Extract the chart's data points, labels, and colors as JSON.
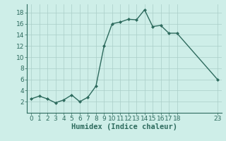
{
  "x": [
    0,
    1,
    2,
    3,
    4,
    5,
    6,
    7,
    8,
    9,
    10,
    11,
    12,
    13,
    14,
    15,
    16,
    17,
    18,
    23
  ],
  "y": [
    2.5,
    3.0,
    2.5,
    1.8,
    2.3,
    3.2,
    2.0,
    2.8,
    4.8,
    12.0,
    16.0,
    16.3,
    16.8,
    16.7,
    18.5,
    15.5,
    15.7,
    14.3,
    14.3,
    6.0
  ],
  "line_color": "#2e6b5e",
  "marker": "D",
  "marker_size": 2.0,
  "bg_color": "#ceeee8",
  "grid_color": "#aacdc8",
  "xlabel": "Humidex (Indice chaleur)",
  "xlim": [
    -0.5,
    23.5
  ],
  "ylim": [
    0,
    19.5
  ],
  "yticks": [
    2,
    4,
    6,
    8,
    10,
    12,
    14,
    16,
    18
  ],
  "xticks": [
    0,
    1,
    2,
    3,
    4,
    5,
    6,
    7,
    8,
    9,
    10,
    11,
    12,
    13,
    14,
    15,
    16,
    17,
    18,
    23
  ],
  "xlabel_fontsize": 7.5,
  "tick_fontsize": 6.5,
  "line_width": 1.0
}
